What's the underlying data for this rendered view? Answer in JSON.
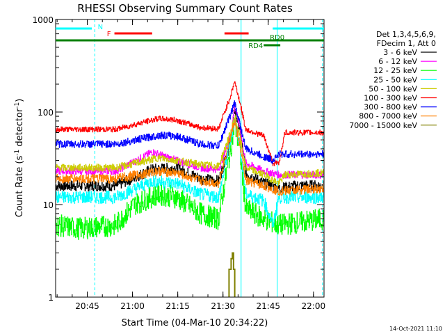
{
  "chart_data": {
    "type": "line",
    "title": "RHESSI Observing Summary Count Rates",
    "xlabel": "Start Time (04-Mar-10 20:34:22)",
    "ylabel_main": "Count Rate (s",
    "ylabel_sup1": "-1",
    "ylabel_mid": " detector",
    "ylabel_sup2": "-1",
    "ylabel_end": ")",
    "xlim_min": [
      0,
      89
    ],
    "ylim": [
      1,
      1000
    ],
    "yscale": "log",
    "x_ticks": [
      {
        "min": 10.5,
        "label": "20:45"
      },
      {
        "min": 25.5,
        "label": "21:00"
      },
      {
        "min": 40.5,
        "label": "21:15"
      },
      {
        "min": 55.5,
        "label": "21:30"
      },
      {
        "min": 70.5,
        "label": "21:45"
      },
      {
        "min": 85.5,
        "label": "22:00"
      }
    ],
    "y_ticks": [
      {
        "value": 1,
        "label": "1"
      },
      {
        "value": 10,
        "label": "10"
      },
      {
        "value": 100,
        "label": "100"
      },
      {
        "value": 1000,
        "label": "1000"
      }
    ],
    "legend": {
      "placement": "right",
      "header": [
        "Det 1,3,4,5,6,9,",
        "FDecim 1, Att 0"
      ]
    },
    "series": [
      {
        "name": "3 - 6 keV",
        "color": "#000000",
        "base": 16,
        "bump": 1.5,
        "flare": 6.5,
        "post": 16,
        "noise": 0.06,
        "points": [
          [
            0,
            16
          ],
          [
            20,
            16
          ],
          [
            32,
            24
          ],
          [
            40,
            25
          ],
          [
            48,
            19
          ],
          [
            54,
            18
          ],
          [
            58,
            48
          ],
          [
            59.3,
            108
          ],
          [
            61,
            65
          ],
          [
            63,
            22
          ],
          [
            69,
            17
          ],
          [
            74,
            15
          ],
          [
            80,
            16
          ],
          [
            89,
            16
          ]
        ]
      },
      {
        "name": "6 - 12 keV",
        "color": "#ff00ff",
        "base": 23,
        "bump": 1.3,
        "flare": 5,
        "post": 21,
        "noise": 0.04,
        "points": [
          [
            0,
            23
          ],
          [
            20,
            23
          ],
          [
            32,
            37
          ],
          [
            40,
            30
          ],
          [
            48,
            25
          ],
          [
            54,
            24
          ],
          [
            58,
            55
          ],
          [
            59.3,
            115
          ],
          [
            61,
            70
          ],
          [
            63,
            28
          ],
          [
            69,
            23
          ],
          [
            74,
            21
          ],
          [
            89,
            21
          ]
        ]
      },
      {
        "name": "12 - 25 keV",
        "color": "#00ff00",
        "base": 6,
        "bump": 2.0,
        "flare": 12,
        "post": 7,
        "noise": 0.12,
        "points": [
          [
            0,
            6
          ],
          [
            8,
            5.5
          ],
          [
            20,
            6
          ],
          [
            26,
            10
          ],
          [
            34,
            13
          ],
          [
            40,
            12
          ],
          [
            48,
            8
          ],
          [
            54,
            7
          ],
          [
            58,
            40
          ],
          [
            59.3,
            75
          ],
          [
            61,
            40
          ],
          [
            63,
            9
          ],
          [
            69,
            7
          ],
          [
            74,
            6
          ],
          [
            89,
            7
          ]
        ]
      },
      {
        "name": "25 - 50 keV",
        "color": "#00ffff",
        "base": 12,
        "bump": 1.6,
        "flare": 7,
        "post": 12,
        "noise": 0.07,
        "points": [
          [
            0,
            12
          ],
          [
            20,
            12
          ],
          [
            32,
            18
          ],
          [
            40,
            17
          ],
          [
            48,
            13
          ],
          [
            54,
            12
          ],
          [
            58,
            50
          ],
          [
            59.3,
            85
          ],
          [
            61,
            45
          ],
          [
            63,
            13
          ],
          [
            69,
            11
          ],
          [
            72,
            6
          ],
          [
            74,
            12
          ],
          [
            89,
            12
          ]
        ]
      },
      {
        "name": "50 - 100 keV",
        "color": "#cccc00",
        "base": 25,
        "bump": 1.3,
        "flare": 3.5,
        "post": 21,
        "noise": 0.04,
        "points": [
          [
            0,
            25
          ],
          [
            20,
            25
          ],
          [
            34,
            32
          ],
          [
            40,
            30
          ],
          [
            48,
            27
          ],
          [
            54,
            26
          ],
          [
            58,
            60
          ],
          [
            59.3,
            90
          ],
          [
            61,
            55
          ],
          [
            63,
            25
          ],
          [
            69,
            21
          ],
          [
            74,
            17
          ],
          [
            76,
            21
          ],
          [
            89,
            22
          ]
        ]
      },
      {
        "name": "100 - 300 keV",
        "color": "#ff0000",
        "base": 65,
        "bump": 1.35,
        "flare": 3.3,
        "post": 60,
        "noise": 0.03,
        "points": [
          [
            0,
            65
          ],
          [
            20,
            65
          ],
          [
            34,
            85
          ],
          [
            40,
            82
          ],
          [
            48,
            68
          ],
          [
            54,
            66
          ],
          [
            58,
            150
          ],
          [
            59.3,
            215
          ],
          [
            61,
            130
          ],
          [
            63,
            65
          ],
          [
            69,
            55
          ],
          [
            72,
            28
          ],
          [
            74,
            28
          ],
          [
            76,
            60
          ],
          [
            89,
            60
          ]
        ]
      },
      {
        "name": "300 - 800 keV",
        "color": "#0000ff",
        "base": 45,
        "bump": 1.3,
        "flare": 2.8,
        "post": 35,
        "noise": 0.04,
        "points": [
          [
            0,
            45
          ],
          [
            20,
            45
          ],
          [
            34,
            56
          ],
          [
            40,
            55
          ],
          [
            48,
            45
          ],
          [
            54,
            43
          ],
          [
            58,
            95
          ],
          [
            59.3,
            125
          ],
          [
            61,
            75
          ],
          [
            63,
            40
          ],
          [
            69,
            33
          ],
          [
            72,
            30
          ],
          [
            74,
            35
          ],
          [
            89,
            35
          ]
        ]
      },
      {
        "name": "800 - 7000 keV",
        "color": "#ff8000",
        "base": 19,
        "bump": 1.2,
        "flare": 4,
        "post": 15,
        "noise": 0.05,
        "points": [
          [
            0,
            19
          ],
          [
            20,
            19
          ],
          [
            34,
            23
          ],
          [
            40,
            22
          ],
          [
            48,
            18
          ],
          [
            54,
            17
          ],
          [
            58,
            55
          ],
          [
            59.3,
            80
          ],
          [
            61,
            45
          ],
          [
            63,
            18
          ],
          [
            69,
            16
          ],
          [
            74,
            14
          ],
          [
            89,
            15
          ]
        ]
      },
      {
        "name": "7000 - 15000 keV",
        "color": "#808000",
        "points": [
          [
            57.5,
            1
          ],
          [
            57.5,
            2.0
          ],
          [
            58.2,
            2.0
          ],
          [
            58.2,
            2.6
          ],
          [
            58.6,
            2.6
          ],
          [
            58.6,
            3
          ],
          [
            59,
            3
          ],
          [
            59,
            2.0
          ],
          [
            59.4,
            2.0
          ],
          [
            59.4,
            1
          ]
        ]
      }
    ],
    "annotations": {
      "bars": [
        {
          "label": "N",
          "color": "#00ffff",
          "segments": [
            [
              0,
              12
            ],
            [
              72,
              89
            ]
          ],
          "level": "top"
        },
        {
          "label": "F",
          "color": "#ff0000",
          "segments": [
            [
              19.5,
              32
            ],
            [
              56,
              64
            ]
          ],
          "level": "upper"
        },
        {
          "label": "RD0",
          "color": "#008000",
          "segments": [
            [
              0,
              89
            ]
          ],
          "level": "middle"
        },
        {
          "label": "RD4",
          "color": "#008000",
          "segments": [
            [
              69,
              74.5
            ]
          ],
          "level": "lower"
        }
      ],
      "vlines": [
        {
          "min": 0,
          "color": "#00ffff",
          "style": "solid"
        },
        {
          "min": 13,
          "color": "#00ffff",
          "style": "dashed"
        },
        {
          "min": 61.5,
          "color": "#00ffff",
          "style": "solid"
        },
        {
          "min": 73.5,
          "color": "#00ffff",
          "style": "solid"
        },
        {
          "min": 88.5,
          "color": "#00ffff",
          "style": "dashed"
        }
      ]
    },
    "timestamp": "14-Oct-2021 11:10"
  }
}
